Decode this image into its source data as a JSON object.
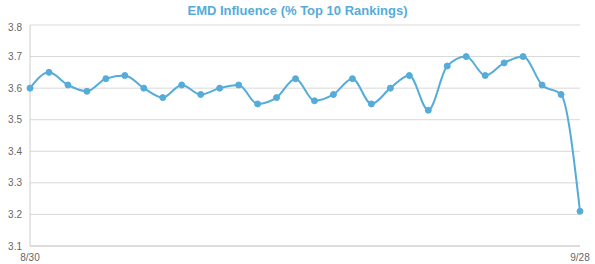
{
  "chart_data": {
    "type": "line",
    "title": "EMD Influence (% Top 10 Rankings)",
    "categories": [
      "8/30",
      null,
      null,
      null,
      null,
      null,
      null,
      null,
      null,
      null,
      null,
      null,
      null,
      null,
      null,
      null,
      null,
      null,
      null,
      null,
      null,
      null,
      null,
      null,
      null,
      null,
      null,
      null,
      null,
      "9/28"
    ],
    "values": [
      3.6,
      3.65,
      3.61,
      3.59,
      3.63,
      3.64,
      3.6,
      3.57,
      3.61,
      3.58,
      3.6,
      3.61,
      3.55,
      3.57,
      3.63,
      3.56,
      3.58,
      3.63,
      3.55,
      3.6,
      3.64,
      3.53,
      3.67,
      3.7,
      3.64,
      3.68,
      3.7,
      3.61,
      3.58,
      3.21
    ],
    "color": "#55acd9",
    "ylim": [
      3.1,
      3.8
    ],
    "yticks": [
      3.1,
      3.2,
      3.3,
      3.4,
      3.5,
      3.6,
      3.7,
      3.8
    ],
    "grid": true,
    "marker": "circle"
  }
}
